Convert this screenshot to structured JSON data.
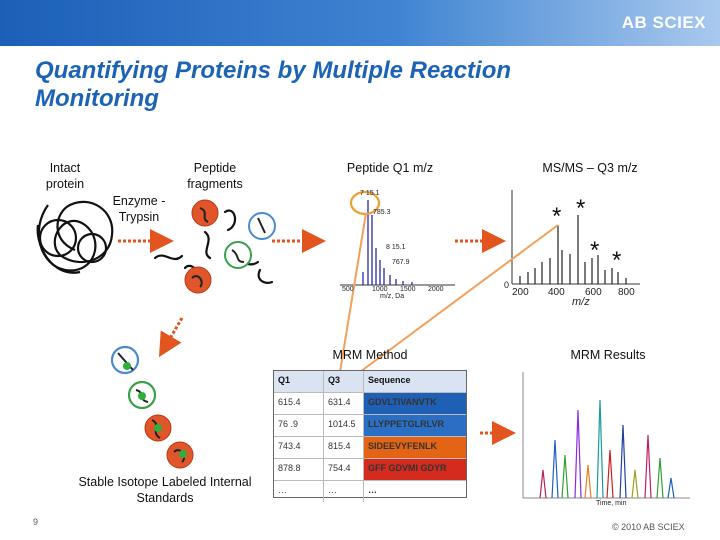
{
  "header": {
    "logo": "AB SCIEX"
  },
  "slide": {
    "title": "Quantifying Proteins by Multiple Reaction Monitoring",
    "page_number": "9",
    "copyright": "© 2010 AB SCIEX"
  },
  "labels": {
    "intact_protein": "Intact protein",
    "enzyme": "Enzyme - Trypsin",
    "peptide_fragments": "Peptide fragments",
    "peptide_q1": "Peptide Q1 m/z",
    "msms_q3": "MS/MS – Q3 m/z",
    "mrm_method": "MRM Method",
    "mrm_results": "MRM Results",
    "stable_isotope": "Stable Isotope Labeled Internal Standards",
    "time_axis": "Time, min"
  },
  "q1_spectrum": {
    "peak_labels": [
      "7 15.1",
      "785.3",
      "8 15.1",
      "767.9"
    ],
    "x_ticks": [
      "500",
      "1000",
      "1500",
      "2000"
    ],
    "xlabel": "m/z, Da"
  },
  "q3_spectrum": {
    "y_origin": "0",
    "x_ticks": [
      "200",
      "400",
      "600",
      "800"
    ],
    "xlabel": "m/z",
    "star_marker": "*"
  },
  "mrm_table": {
    "headers": [
      "Q1",
      "Q3",
      "Sequence"
    ],
    "rows": [
      {
        "q1": "615.4",
        "q3": "631.4",
        "seq": "GDVLTIVANVTK",
        "color": "#1f5fb4"
      },
      {
        "q1": "76 .9",
        "q3": "1014.5",
        "seq": "LLYPPETGLRLVR",
        "color": "#2a6fc4"
      },
      {
        "q1": "743.4",
        "q3": "815.4",
        "seq": "SIDEEVYFENLK",
        "color": "#e26414"
      },
      {
        "q1": "878.8",
        "q3": "754.4",
        "seq": "GFF GDVMI GDYR",
        "color": "#d42b1e"
      },
      {
        "q1": "…",
        "q3": "…",
        "seq": "…",
        "color": "#ffffff"
      }
    ]
  },
  "colors": {
    "title": "#1c63b6",
    "arrow": "#e2551f",
    "line_orange": "#f2a05a"
  }
}
